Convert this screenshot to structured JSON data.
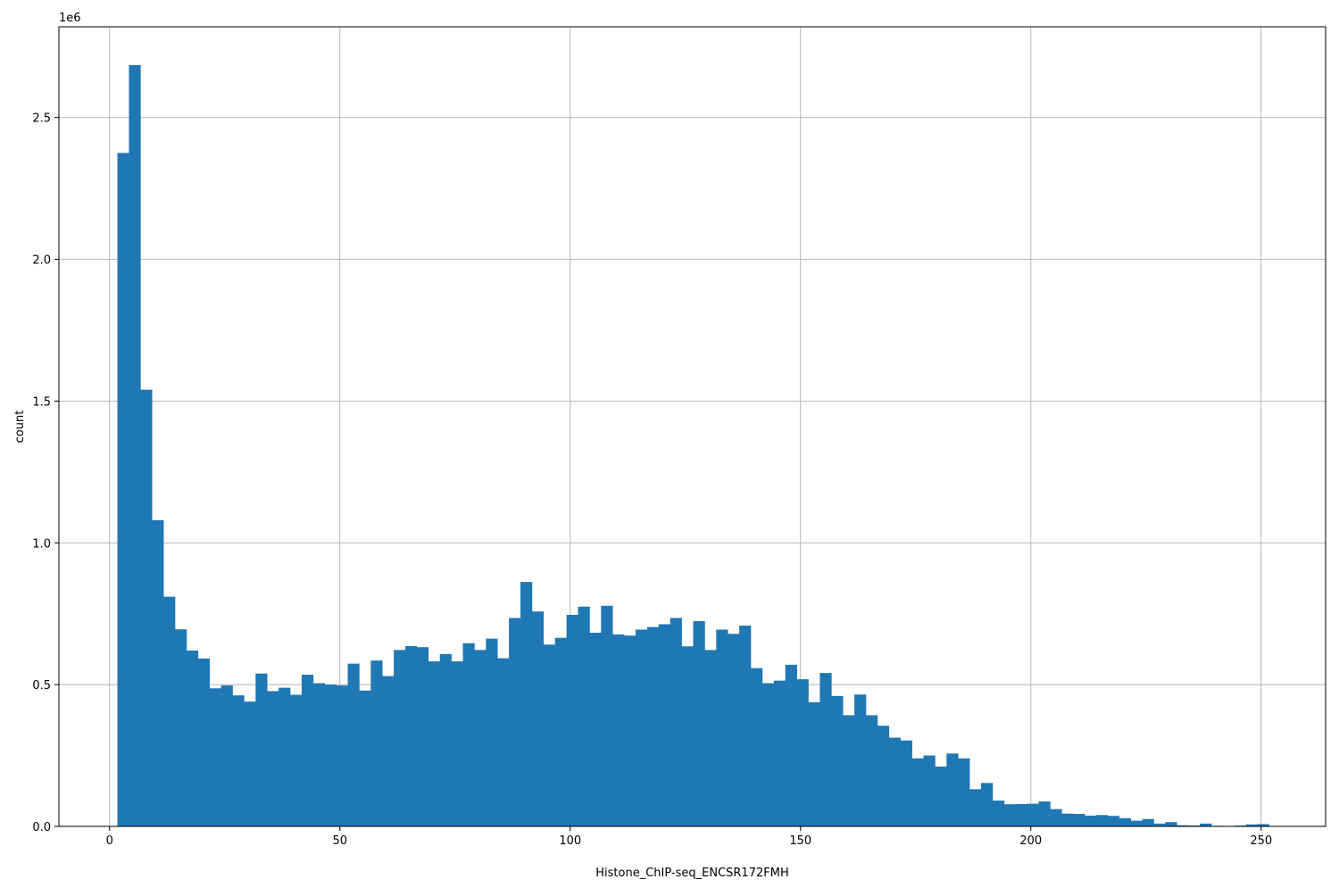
{
  "chart_data": {
    "type": "bar",
    "subtype": "histogram",
    "title": "",
    "xlabel": "Histone_ChIP-seq_ENCSR172FMH",
    "ylabel": "count",
    "y_offset_text": "1e6",
    "y_multiplier": 1000000,
    "xlim": [
      -11,
      264
    ],
    "ylim": [
      0,
      2820000
    ],
    "x_ticks": [
      0,
      50,
      100,
      150,
      200,
      250
    ],
    "x_tick_labels": [
      "0",
      "50",
      "100",
      "150",
      "200",
      "250"
    ],
    "y_ticks": [
      0,
      500000,
      1000000,
      1500000,
      2000000,
      2500000
    ],
    "y_tick_labels": [
      "0.0",
      "0.5",
      "1.0",
      "1.5",
      "2.0",
      "2.5"
    ],
    "grid": true,
    "legend": false,
    "bar_color": "#1f77b4",
    "bin_start": 1.7,
    "bin_width": 2.5,
    "values": [
      2375000,
      2685000,
      1540000,
      1080000,
      810000,
      695000,
      620000,
      592000,
      487000,
      497000,
      462000,
      440000,
      539000,
      477000,
      489000,
      464000,
      535000,
      505000,
      500000,
      497000,
      574000,
      479000,
      585000,
      530000,
      622000,
      636000,
      632000,
      582000,
      608000,
      582000,
      646000,
      622000,
      662000,
      593000,
      735000,
      862000,
      758000,
      641000,
      665000,
      746000,
      775000,
      683000,
      778000,
      677000,
      673000,
      694000,
      703000,
      713000,
      735000,
      635000,
      724000,
      622000,
      694000,
      679000,
      708000,
      558000,
      505000,
      514000,
      570000,
      519000,
      438000,
      541000,
      460000,
      392000,
      465000,
      392000,
      355000,
      313000,
      303000,
      240000,
      250000,
      211000,
      257000,
      240000,
      131000,
      153000,
      91000,
      78000,
      79000,
      80000,
      88000,
      61000,
      45000,
      44000,
      38000,
      40000,
      37000,
      29000,
      20000,
      26000,
      10000,
      15000,
      4000,
      3000,
      10000,
      2000,
      1000,
      3000,
      7000,
      8000
    ]
  }
}
